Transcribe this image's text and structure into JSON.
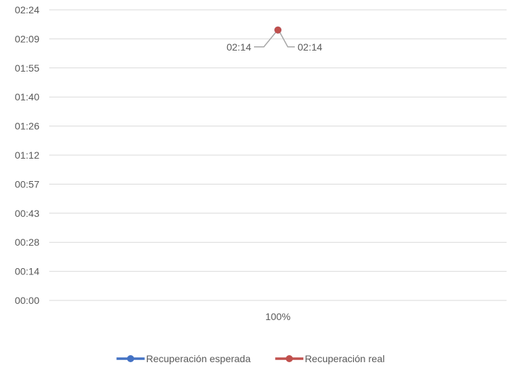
{
  "chart_data": {
    "type": "line",
    "categories": [
      "100%"
    ],
    "y_ticks": [
      "00:00",
      "00:14",
      "00:28",
      "00:43",
      "00:57",
      "01:12",
      "01:26",
      "01:40",
      "01:55",
      "02:09",
      "02:24"
    ],
    "ylim": [
      "00:00",
      "02:24"
    ],
    "grid": true,
    "legend_position": "bottom",
    "series": [
      {
        "name": "Recuperación esperada",
        "values": [
          "02:14"
        ],
        "data_labels": [
          "02:14"
        ],
        "label_side": "left",
        "color": "#4472C4"
      },
      {
        "name": "Recuperación real",
        "values": [
          "02:14"
        ],
        "data_labels": [
          "02:14"
        ],
        "label_side": "right",
        "color": "#C0504D"
      }
    ]
  }
}
